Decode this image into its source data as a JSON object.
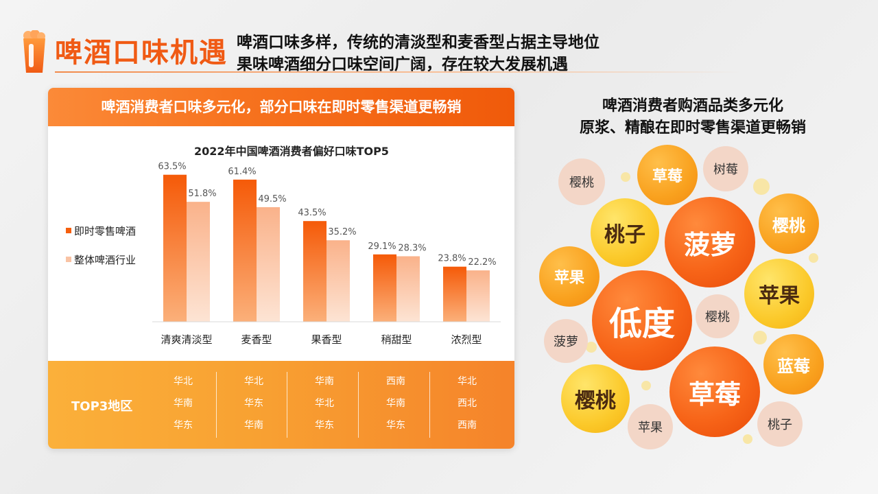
{
  "header": {
    "title": "啤酒口味机遇",
    "line1": "啤酒口味多样，传统的清淡型和麦香型占据主导地位",
    "line2": "果味啤酒细分口味空间广阔，存在较大发展机遇"
  },
  "left_card": {
    "banner": "啤酒消费者口味多元化，部分口味在即时零售渠道更畅销"
  },
  "chart_data": {
    "type": "bar",
    "title": "2022年中国啤酒消费者偏好口味TOP5",
    "categories": [
      "清爽清淡型",
      "麦香型",
      "果香型",
      "稍甜型",
      "浓烈型"
    ],
    "series": [
      {
        "name": "即时零售啤酒",
        "values": [
          63.5,
          61.4,
          43.5,
          29.1,
          23.8
        ],
        "labels": [
          "63.5%",
          "61.4%",
          "43.5%",
          "29.1%",
          "23.8%"
        ],
        "color": "#f55f0d"
      },
      {
        "name": "整体啤酒行业",
        "values": [
          51.8,
          49.5,
          35.2,
          28.3,
          22.2
        ],
        "labels": [
          "51.8%",
          "49.5%",
          "35.2%",
          "28.3%",
          "22.2%"
        ],
        "color": "#f9b48c"
      }
    ],
    "ylim": [
      0,
      70
    ],
    "legend": "left",
    "grid": false
  },
  "regions": {
    "title": "TOP3地区",
    "columns": [
      [
        "华北",
        "华南",
        "华东"
      ],
      [
        "华北",
        "华东",
        "华南"
      ],
      [
        "华南",
        "华北",
        "华东"
      ],
      [
        "西南",
        "华南",
        "华东"
      ],
      [
        "华北",
        "西北",
        "西南"
      ]
    ]
  },
  "right_panel": {
    "title1": "啤酒消费者购酒品类多元化",
    "title2": "原浆、精酿在即时零售渠道更畅销",
    "bubbles": [
      {
        "label": "樱桃",
        "style": "pale"
      },
      {
        "label": "草莓",
        "style": "orange"
      },
      {
        "label": "树莓",
        "style": "pale"
      },
      {
        "label": "桃子",
        "style": "yellow"
      },
      {
        "label": "菠萝",
        "style": "red"
      },
      {
        "label": "樱桃",
        "style": "orange"
      },
      {
        "label": "苹果",
        "style": "orange"
      },
      {
        "label": "苹果",
        "style": "yellow"
      },
      {
        "label": "低度",
        "style": "red"
      },
      {
        "label": "樱桃",
        "style": "pale"
      },
      {
        "label": "菠萝",
        "style": "pale"
      },
      {
        "label": "蓝莓",
        "style": "orange"
      },
      {
        "label": "樱桃",
        "style": "yellow"
      },
      {
        "label": "草莓",
        "style": "red"
      },
      {
        "label": "苹果",
        "style": "pale"
      },
      {
        "label": "桃子",
        "style": "pale"
      }
    ]
  }
}
